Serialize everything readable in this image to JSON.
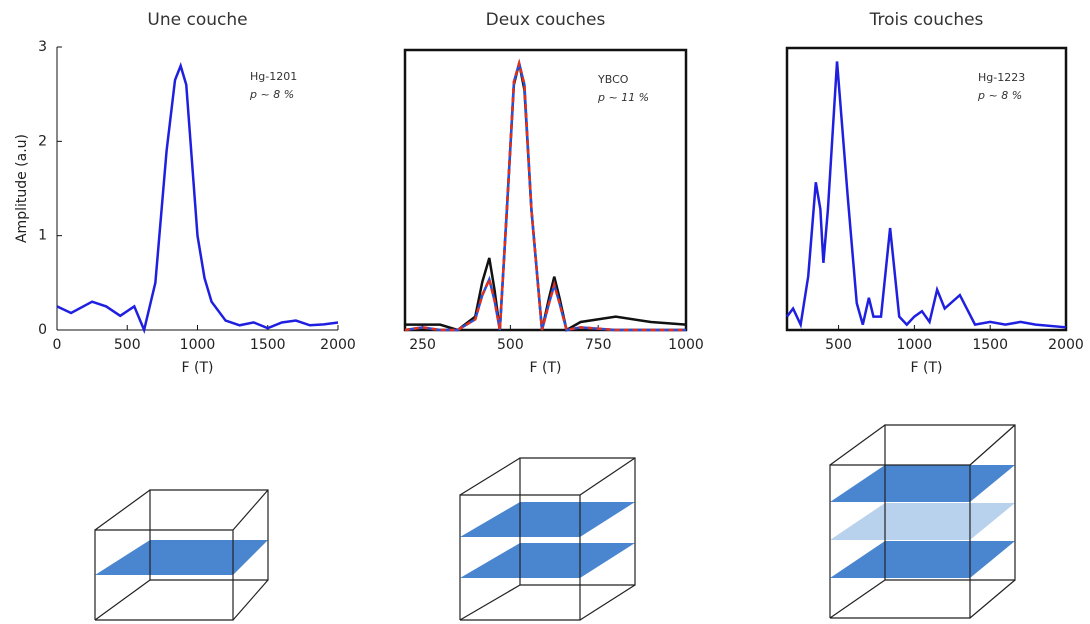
{
  "chart_data": [
    {
      "type": "line",
      "title": "Une couche",
      "xlabel": "F (T)",
      "ylabel": "Amplitude (a.u)",
      "annotations": [
        "Hg-1201",
        "p ~ 8 %"
      ],
      "frame": false,
      "x": [
        0,
        100,
        250,
        350,
        450,
        550,
        620,
        700,
        780,
        840,
        880,
        920,
        960,
        1000,
        1050,
        1100,
        1200,
        1300,
        1400,
        1500,
        1600,
        1700,
        1800,
        1900,
        2000
      ],
      "series": [
        {
          "color": "#1f1fe0",
          "values": [
            0.25,
            0.18,
            0.3,
            0.25,
            0.15,
            0.25,
            0.0,
            0.5,
            1.9,
            2.65,
            2.8,
            2.6,
            1.8,
            1.0,
            0.55,
            0.3,
            0.1,
            0.05,
            0.08,
            0.02,
            0.08,
            0.1,
            0.05,
            0.06,
            0.08
          ]
        }
      ],
      "xlim": [
        0,
        2000
      ],
      "ylim": [
        0,
        3
      ],
      "xticks": [
        0,
        500,
        1000,
        1500,
        2000
      ],
      "yticks": [
        0,
        1,
        2,
        3
      ]
    },
    {
      "type": "line",
      "title": "Deux couches",
      "xlabel": "F (T)",
      "annotations": [
        "YBCO",
        "p ~ 11 %"
      ],
      "frame": true,
      "x": [
        200,
        250,
        300,
        350,
        400,
        420,
        440,
        455,
        470,
        490,
        510,
        525,
        540,
        560,
        590,
        610,
        625,
        640,
        660,
        700,
        800,
        900,
        1000
      ],
      "series": [
        {
          "color": "#111111",
          "linestyle": "solid",
          "values": [
            0.02,
            0.02,
            0.02,
            0.0,
            0.05,
            0.18,
            0.27,
            0.15,
            0.0,
            0.45,
            0.92,
            1.0,
            0.9,
            0.45,
            0.0,
            0.12,
            0.2,
            0.12,
            0.0,
            0.03,
            0.05,
            0.03,
            0.02
          ]
        },
        {
          "color": "#2a4fd6",
          "linestyle": "solid",
          "values": [
            0.0,
            0.01,
            0.0,
            0.0,
            0.04,
            0.13,
            0.19,
            0.11,
            0.0,
            0.45,
            0.93,
            1.0,
            0.92,
            0.45,
            0.0,
            0.1,
            0.17,
            0.1,
            0.0,
            0.01,
            0.0,
            0.0,
            0.0
          ]
        },
        {
          "color": "#e0301e",
          "linestyle": "dashed",
          "values": [
            0.0,
            0.01,
            0.0,
            0.0,
            0.04,
            0.13,
            0.19,
            0.11,
            0.0,
            0.45,
            0.93,
            1.0,
            0.92,
            0.45,
            0.0,
            0.1,
            0.17,
            0.1,
            0.0,
            0.01,
            0.0,
            0.0,
            0.0
          ]
        }
      ],
      "xlim": [
        200,
        1000
      ],
      "ylim": [
        0,
        1.05
      ],
      "xticks": [
        250,
        500,
        750,
        1000
      ]
    },
    {
      "type": "line",
      "title": "Trois couches",
      "xlabel": "F (T)",
      "annotations": [
        "Hg-1223",
        "p ~ 8 %"
      ],
      "frame": true,
      "x": [
        160,
        200,
        250,
        300,
        350,
        380,
        400,
        430,
        490,
        560,
        620,
        660,
        700,
        730,
        780,
        840,
        900,
        950,
        1000,
        1050,
        1100,
        1150,
        1200,
        1300,
        1400,
        1500,
        1600,
        1700,
        1800,
        2000
      ],
      "series": [
        {
          "color": "#1f1fe0",
          "values": [
            0.05,
            0.08,
            0.02,
            0.2,
            0.55,
            0.45,
            0.25,
            0.45,
            1.0,
            0.5,
            0.1,
            0.02,
            0.12,
            0.05,
            0.05,
            0.38,
            0.05,
            0.02,
            0.05,
            0.07,
            0.03,
            0.15,
            0.08,
            0.13,
            0.02,
            0.03,
            0.02,
            0.03,
            0.02,
            0.01
          ]
        }
      ],
      "xlim": [
        160,
        2000
      ],
      "ylim": [
        0,
        1.05
      ],
      "xticks": [
        500,
        1000,
        1500,
        2000
      ]
    }
  ]
}
